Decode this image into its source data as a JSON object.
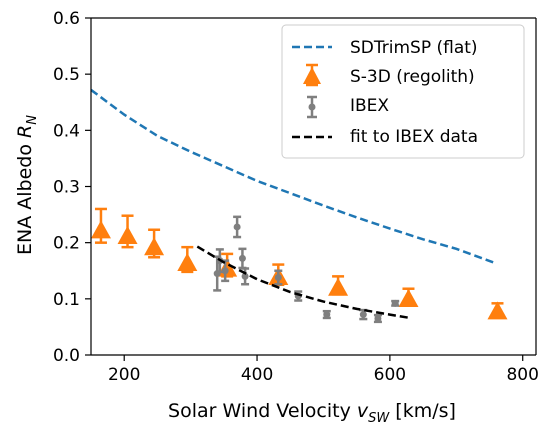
{
  "chart_data": {
    "type": "scatter",
    "xlabel": "Solar Wind Velocity",
    "xlabel_var": "v",
    "xlabel_sub": "SW",
    "xlabel_unit": "[km/s]",
    "ylabel": "ENA Albedo",
    "ylabel_var": "R",
    "ylabel_sub": "N",
    "xlim": [
      150,
      820
    ],
    "ylim": [
      0.0,
      0.6
    ],
    "xticks": [
      200,
      400,
      600,
      800
    ],
    "yticks": [
      0.0,
      0.1,
      0.2,
      0.3,
      0.4,
      0.5,
      0.6
    ],
    "xtick_labels": [
      "200",
      "400",
      "600",
      "800"
    ],
    "ytick_labels": [
      "0.0",
      "0.1",
      "0.2",
      "0.3",
      "0.4",
      "0.5",
      "0.6"
    ],
    "legend_position": "top-right",
    "grid": false,
    "series": [
      {
        "name": "SDTrimSP (flat)",
        "kind": "dashed-line",
        "color": "#1f77b4",
        "x": [
          150,
          200,
          250,
          300,
          350,
          400,
          450,
          500,
          550,
          600,
          650,
          700,
          760
        ],
        "y": [
          0.472,
          0.428,
          0.39,
          0.362,
          0.336,
          0.31,
          0.288,
          0.266,
          0.245,
          0.225,
          0.206,
          0.189,
          0.163
        ]
      },
      {
        "name": "S-3D (regolith)",
        "kind": "triangle-errorbar",
        "color": "#ff7f0e",
        "x": [
          165,
          205,
          245,
          295,
          355,
          432,
          522,
          628,
          762
        ],
        "y": [
          0.22,
          0.21,
          0.19,
          0.162,
          0.152,
          0.137,
          0.118,
          0.098,
          0.076
        ],
        "yerr_low": [
          0.02,
          0.018,
          0.016,
          0.014,
          0.012,
          0.012,
          0.01,
          0.01,
          0.008
        ],
        "yerr_high": [
          0.04,
          0.038,
          0.033,
          0.03,
          0.028,
          0.024,
          0.022,
          0.02,
          0.016
        ]
      },
      {
        "name": "IBEX",
        "kind": "point-errorbar",
        "color": "#7f7f7f",
        "x": [
          340,
          344,
          352,
          370,
          378,
          382,
          432,
          462,
          505,
          560,
          582,
          608
        ],
        "y": [
          0.145,
          0.168,
          0.15,
          0.228,
          0.172,
          0.14,
          0.138,
          0.105,
          0.072,
          0.072,
          0.065,
          0.092
        ],
        "yerr": [
          0.03,
          0.02,
          0.018,
          0.018,
          0.017,
          0.014,
          0.012,
          0.008,
          0.006,
          0.008,
          0.006,
          0.004
        ]
      },
      {
        "name": "fit to IBEX data",
        "kind": "dashed-line",
        "color": "#000000",
        "x": [
          310,
          350,
          400,
          450,
          500,
          550,
          600,
          630
        ],
        "y": [
          0.193,
          0.165,
          0.135,
          0.112,
          0.095,
          0.082,
          0.072,
          0.066
        ]
      }
    ]
  }
}
